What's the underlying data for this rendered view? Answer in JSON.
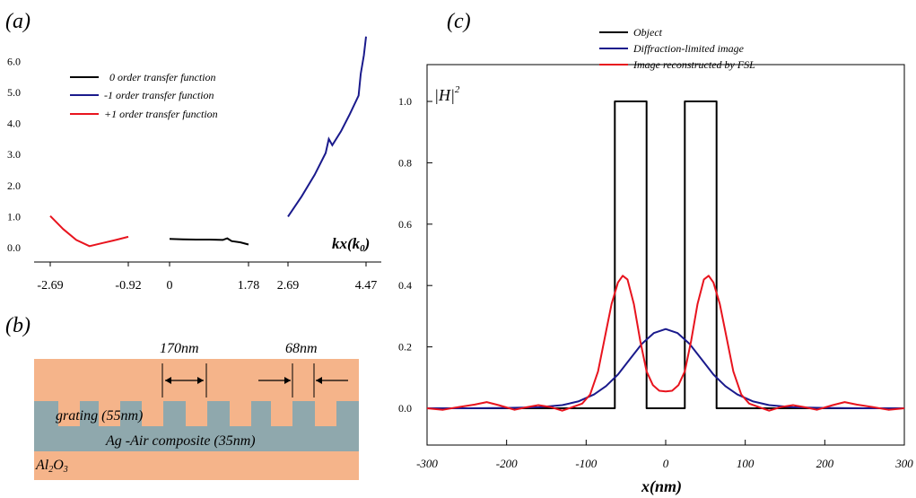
{
  "panel_labels": {
    "a": "(a)",
    "b": "(b)",
    "c": "(c)"
  },
  "colors": {
    "black": "#000000",
    "navy": "#1a1a8c",
    "red": "#e8141e",
    "slab": "#f5b48a",
    "film": "#8fa8ad"
  },
  "chart_data": [
    {
      "type": "line",
      "panel": "a",
      "xlabel": "kx(k0)",
      "xlabel_main": "kx(k",
      "xlabel_sub": "0",
      "xlabel_close": ")",
      "ylabel": "",
      "xlim": [
        -3.0,
        4.6
      ],
      "ylim": [
        -0.3,
        6.9
      ],
      "x_ticks": [
        -2.69,
        -0.92,
        0,
        1.78,
        2.69,
        4.47
      ],
      "x_tick_labels": [
        "-2.69",
        "-0.92",
        "0",
        "1.78",
        "2.69",
        "4.47"
      ],
      "y_ticks": [
        0.0,
        1.0,
        2.0,
        3.0,
        4.0,
        5.0,
        6.0
      ],
      "y_tick_labels": [
        "0.0",
        "1.0",
        "2.0",
        "3.0",
        "4.0",
        "5.0",
        "6.0"
      ],
      "legend": "top-left",
      "series": [
        {
          "name": "0 order transfer function",
          "color": "#000000",
          "x": [
            0,
            0.3,
            0.6,
            0.9,
            1.2,
            1.3,
            1.4,
            1.6,
            1.78
          ],
          "y": [
            0.28,
            0.27,
            0.26,
            0.26,
            0.25,
            0.3,
            0.21,
            0.17,
            0.1
          ]
        },
        {
          "name": "-1 order transfer function",
          "color": "#1a1a8c",
          "x": [
            2.69,
            3.0,
            3.3,
            3.55,
            3.62,
            3.7,
            3.9,
            4.1,
            4.3,
            4.35,
            4.42,
            4.47
          ],
          "y": [
            1.0,
            1.65,
            2.35,
            3.05,
            3.5,
            3.3,
            3.75,
            4.3,
            4.9,
            5.6,
            6.2,
            6.8
          ]
        },
        {
          "name": "+1 order transfer function",
          "color": "#e8141e",
          "x": [
            -2.69,
            -2.4,
            -2.1,
            -1.8,
            -1.5,
            -1.2,
            -0.92
          ],
          "y": [
            1.02,
            0.6,
            0.25,
            0.05,
            0.15,
            0.25,
            0.35
          ]
        }
      ]
    },
    {
      "type": "line",
      "panel": "c",
      "xlabel": "x(nm)",
      "ylabel": "|H|2",
      "ylabel_main": "|H|",
      "ylabel_sup": "2",
      "xlim": [
        -300,
        300
      ],
      "ylim": [
        -0.12,
        1.12
      ],
      "x_ticks": [
        -300,
        -200,
        -100,
        0,
        100,
        200,
        300
      ],
      "x_tick_labels": [
        "-300",
        "-200",
        "-100",
        "0",
        "100",
        "200",
        "300"
      ],
      "y_ticks": [
        0.0,
        0.2,
        0.4,
        0.6,
        0.8,
        1.0
      ],
      "y_tick_labels": [
        "0.0",
        "0.2",
        "0.4",
        "0.6",
        "0.8",
        "1.0"
      ],
      "legend": "top-right",
      "series": [
        {
          "name": "Object",
          "color": "#000000",
          "x": [
            -300,
            -64,
            -64,
            -24,
            -24,
            24,
            24,
            64,
            64,
            300
          ],
          "y": [
            0,
            0,
            1,
            1,
            0,
            0,
            1,
            1,
            0,
            0
          ]
        },
        {
          "name": "Diffraction-limited image",
          "color": "#1a1a8c",
          "x": [
            -300,
            -250,
            -200,
            -160,
            -130,
            -110,
            -90,
            -75,
            -60,
            -45,
            -30,
            -15,
            0,
            15,
            30,
            45,
            60,
            75,
            90,
            110,
            130,
            160,
            200,
            250,
            300
          ],
          "y": [
            0.0,
            0.0,
            0.001,
            0.003,
            0.01,
            0.022,
            0.045,
            0.072,
            0.11,
            0.16,
            0.21,
            0.245,
            0.258,
            0.245,
            0.21,
            0.16,
            0.11,
            0.072,
            0.045,
            0.022,
            0.01,
            0.003,
            0.001,
            0.0,
            0.0
          ]
        },
        {
          "name": "Image reconstructed by FSL",
          "color": "#e8141e",
          "x": [
            -300,
            -280,
            -260,
            -240,
            -225,
            -210,
            -190,
            -175,
            -160,
            -145,
            -130,
            -118,
            -105,
            -95,
            -85,
            -75,
            -68,
            -60,
            -54,
            -48,
            -40,
            -32,
            -24,
            -16,
            -8,
            0,
            8,
            16,
            24,
            32,
            40,
            48,
            54,
            60,
            68,
            75,
            85,
            95,
            105,
            118,
            130,
            145,
            160,
            175,
            190,
            210,
            225,
            240,
            260,
            280,
            300
          ],
          "y": [
            0.0,
            -0.005,
            0.004,
            0.012,
            0.02,
            0.01,
            -0.005,
            0.003,
            0.01,
            0.004,
            -0.008,
            0.003,
            0.015,
            0.045,
            0.12,
            0.25,
            0.34,
            0.41,
            0.432,
            0.42,
            0.34,
            0.22,
            0.12,
            0.075,
            0.057,
            0.055,
            0.057,
            0.075,
            0.12,
            0.22,
            0.34,
            0.42,
            0.432,
            0.41,
            0.34,
            0.25,
            0.12,
            0.045,
            0.015,
            0.003,
            -0.008,
            0.004,
            0.01,
            0.003,
            -0.005,
            0.01,
            0.02,
            0.012,
            0.004,
            -0.005,
            0.0
          ]
        }
      ]
    }
  ],
  "diagram_b": {
    "dim1": "170nm",
    "dim2": "68nm",
    "grating": "grating (55nm)",
    "composite": "Ag -Air composite (35nm)",
    "substrate_main": "Al",
    "substrate_sub1": "2",
    "substrate_o": "O",
    "substrate_sub2": "3"
  }
}
